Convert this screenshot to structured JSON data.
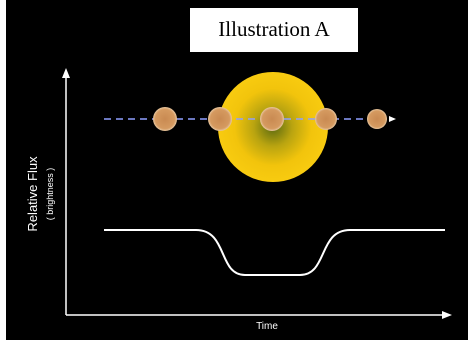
{
  "title": "Illustration A",
  "y_axis_label": "Relative Flux",
  "y_axis_sublabel": "( brightness )",
  "x_axis_label": "Time"
}
